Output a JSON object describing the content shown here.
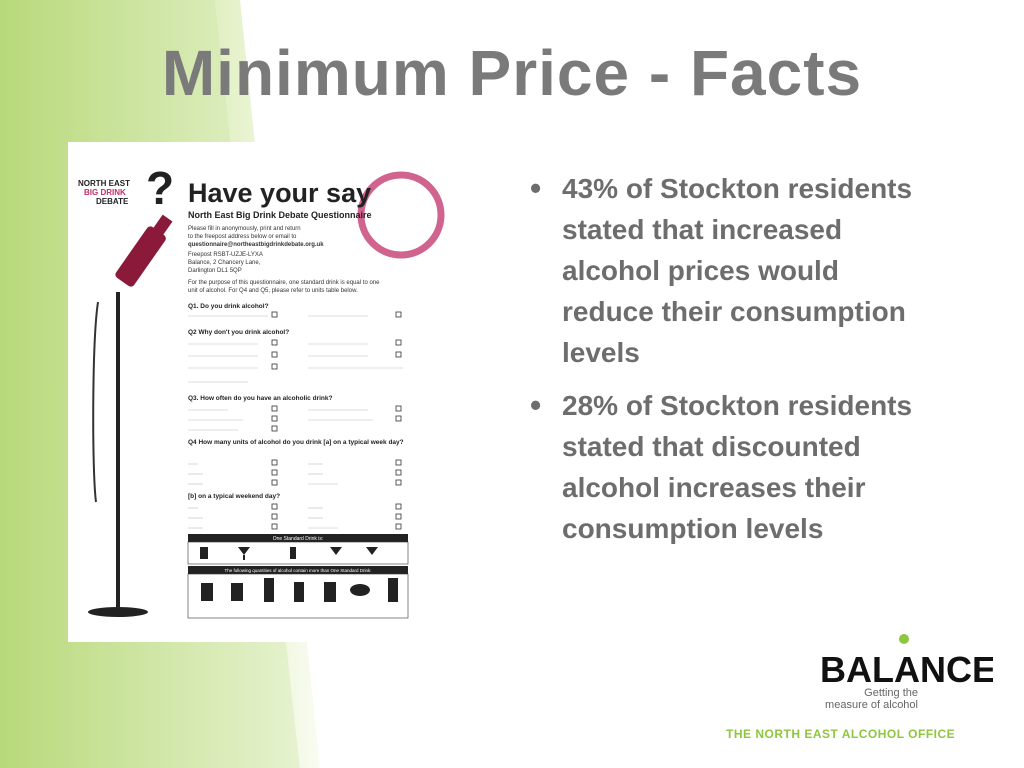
{
  "slide": {
    "title": "Minimum Price - Facts",
    "footer": "THE NORTH EAST ALCOHOL OFFICE"
  },
  "bullets": [
    "43% of Stockton residents stated that increased alcohol prices would reduce their consumption levels",
    "28% of Stockton residents stated that discounted alcohol increases their consumption levels"
  ],
  "poster": {
    "logo_text": [
      "NORTH EAST",
      "BIG DRINK",
      "DEBATE"
    ],
    "heading": "Have your say",
    "subheading": "North East Big Drink Debate Questionnaire",
    "intro": [
      "Please fill in anonymously, print and return",
      "to the freepost address below or email to",
      "questionnaire@northeastbigdrinkdebate.org.uk"
    ],
    "address": [
      "Freepost RSBT-UZJE-LYXA",
      "Balance, 2 Chancery Lane,",
      "Darlington DL1 5QP"
    ],
    "note": [
      "For the purpose of this questionnaire, one standard drink is equal to one",
      "unit of alcohol. For Q4 and Q5, please refer to units table below."
    ],
    "q1": "Q1. Do you drink alcohol?",
    "q2": "Q2 Why don't you drink alcohol?",
    "q3": "Q3. How often do you have an alcoholic drink?",
    "q4": "Q4 How many units of alcohol do you drink [a] on a typical week day?",
    "q4b": "[b] on a typical weekend day?",
    "units_heading": "One Standard Drink is:",
    "units_heading2": "The following quantities of alcohol contain more than One Standard Drink:"
  },
  "logo": {
    "name": "BALANCE",
    "tagline_1": "Getting the",
    "tagline_2": "measure of alcohol"
  },
  "colors": {
    "title": "#7a7a7a",
    "text": "#6d6d6d",
    "accent_green": "#8dc63f",
    "poster_pink": "#c0306a"
  }
}
